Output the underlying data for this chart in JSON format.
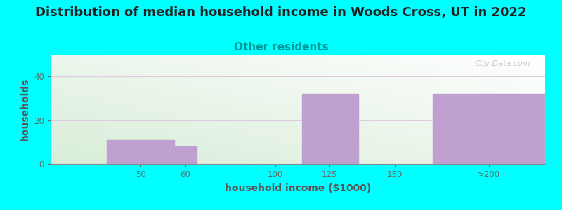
{
  "title": "Distribution of median household income in Woods Cross, UT in 2022",
  "subtitle": "Other residents",
  "xlabel": "household income ($1000)",
  "ylabel": "households",
  "title_fontsize": 13,
  "subtitle_fontsize": 11,
  "subtitle_color": "#009999",
  "axis_label_fontsize": 10,
  "background_color": "#00FFFF",
  "plot_bg_color_topleft": "#d8edd8",
  "plot_bg_color_bottomright": "#ffffff",
  "bar_color": "#c0a0d0",
  "tick_labels": [
    "50",
    "60",
    "100",
    "125",
    "150",
    ">200"
  ],
  "bar_lefts": [
    25,
    55,
    65,
    112,
    137,
    170
  ],
  "bar_widths": [
    30,
    10,
    47,
    25,
    33,
    50
  ],
  "bar_heights": [
    11,
    8,
    0,
    32,
    0,
    32
  ],
  "xlim": [
    0,
    220
  ],
  "ylim": [
    0,
    50
  ],
  "yticks": [
    0,
    20,
    40
  ],
  "xtick_positions": [
    40,
    60,
    100,
    124,
    153,
    195
  ],
  "watermark": "City-Data.com"
}
